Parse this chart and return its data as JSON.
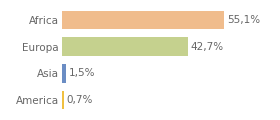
{
  "categories": [
    "Africa",
    "Europa",
    "Asia",
    "America"
  ],
  "values": [
    55.1,
    42.7,
    1.5,
    0.7
  ],
  "labels": [
    "55,1%",
    "42,7%",
    "1,5%",
    "0,7%"
  ],
  "bar_colors": [
    "#f0bc8c",
    "#c5d18e",
    "#6b8dc4",
    "#f0c040"
  ],
  "background_color": "#ffffff",
  "xlim": [
    0,
    72
  ],
  "bar_height": 0.68,
  "label_fontsize": 7.5,
  "tick_fontsize": 7.5,
  "label_color": "#666666",
  "tick_color": "#666666"
}
